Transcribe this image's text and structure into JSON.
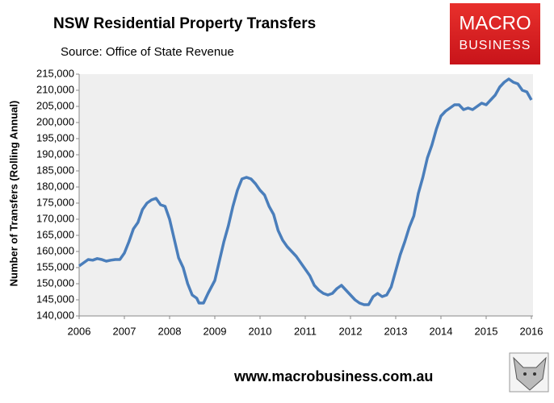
{
  "chart_data": {
    "type": "line",
    "title": "NSW Residential Property Transfers",
    "subtitle": "Source: Office of State Revenue",
    "y_label": "Number of Transfers (Rolling Annual)",
    "footer": "www.macrobusiness.com.au",
    "logo": [
      "MACRO",
      "BUSINESS"
    ],
    "xlim": [
      2006,
      2016
    ],
    "xticks": [
      2006,
      2007,
      2008,
      2009,
      2010,
      2011,
      2012,
      2013,
      2014,
      2015,
      2016
    ],
    "ylim": [
      140000,
      215000
    ],
    "yticks": [
      {
        "value": 140000,
        "label": "140,000"
      },
      {
        "value": 145000,
        "label": "145,000"
      },
      {
        "value": 150000,
        "label": "150,000"
      },
      {
        "value": 155000,
        "label": "155,000"
      },
      {
        "value": 160000,
        "label": "160,000"
      },
      {
        "value": 165000,
        "label": "165,000"
      },
      {
        "value": 170000,
        "label": "170,000"
      },
      {
        "value": 175000,
        "label": "175,000"
      },
      {
        "value": 180000,
        "label": "180,000"
      },
      {
        "value": 185000,
        "label": "185,000"
      },
      {
        "value": 190000,
        "label": "190,000"
      },
      {
        "value": 195000,
        "label": "195,000"
      },
      {
        "value": 200000,
        "label": "200,000"
      },
      {
        "value": 205000,
        "label": "205,000"
      },
      {
        "value": 210000,
        "label": "210,000"
      },
      {
        "value": 215000,
        "label": "215,000"
      }
    ],
    "grid": false,
    "x": [
      2006.0,
      2006.1,
      2006.2,
      2006.3,
      2006.4,
      2006.5,
      2006.6,
      2006.7,
      2006.8,
      2006.9,
      2007.0,
      2007.1,
      2007.2,
      2007.3,
      2007.4,
      2007.5,
      2007.6,
      2007.7,
      2007.8,
      2007.9,
      2008.0,
      2008.1,
      2008.2,
      2008.3,
      2008.4,
      2008.5,
      2008.6,
      2008.65,
      2008.75,
      2008.85,
      2009.0,
      2009.1,
      2009.2,
      2009.3,
      2009.4,
      2009.5,
      2009.6,
      2009.7,
      2009.8,
      2009.9,
      2010.0,
      2010.1,
      2010.2,
      2010.3,
      2010.4,
      2010.5,
      2010.6,
      2010.7,
      2010.8,
      2010.9,
      2011.0,
      2011.1,
      2011.2,
      2011.3,
      2011.4,
      2011.5,
      2011.6,
      2011.7,
      2011.8,
      2011.9,
      2012.0,
      2012.1,
      2012.2,
      2012.3,
      2012.4,
      2012.5,
      2012.6,
      2012.7,
      2012.8,
      2012.9,
      2013.0,
      2013.1,
      2013.2,
      2013.3,
      2013.4,
      2013.5,
      2013.6,
      2013.7,
      2013.8,
      2013.9,
      2014.0,
      2014.1,
      2014.2,
      2014.3,
      2014.4,
      2014.5,
      2014.6,
      2014.7,
      2014.8,
      2014.9,
      2015.0,
      2015.1,
      2015.2,
      2015.3,
      2015.4,
      2015.5,
      2015.6,
      2015.7,
      2015.8,
      2015.9,
      2016.0
    ],
    "series": [
      {
        "name": "NSW Residential Property Transfers",
        "color": "#4a7ebb",
        "values": [
          155500,
          156500,
          157500,
          157300,
          157800,
          157500,
          157000,
          157300,
          157500,
          157500,
          159500,
          163000,
          167000,
          169000,
          173000,
          175000,
          176000,
          176500,
          174500,
          174000,
          170000,
          164000,
          158000,
          155000,
          150000,
          146500,
          145500,
          144000,
          144000,
          147000,
          151000,
          157000,
          163000,
          168000,
          174000,
          179000,
          182500,
          183000,
          182500,
          181000,
          179000,
          177500,
          174000,
          171500,
          166500,
          163500,
          161500,
          160000,
          158500,
          156500,
          154500,
          152500,
          149500,
          148000,
          147000,
          146500,
          147000,
          148500,
          149500,
          148000,
          146500,
          145000,
          144000,
          143500,
          143500,
          146000,
          147000,
          146000,
          146500,
          149000,
          154000,
          159000,
          163000,
          167500,
          171000,
          178000,
          183000,
          189000,
          193000,
          198000,
          202000,
          203500,
          204500,
          205500,
          205500,
          204000,
          204500,
          204000,
          205000,
          206000,
          205500,
          207000,
          208500,
          211000,
          212500,
          213500,
          212500,
          212000,
          210000,
          209500,
          207000
        ]
      }
    ]
  }
}
